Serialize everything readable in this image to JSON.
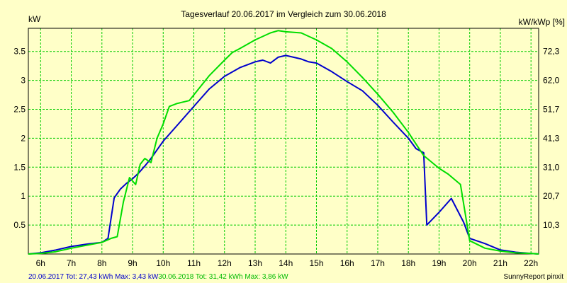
{
  "chart_data": {
    "type": "line",
    "title": "Tagesverlauf 20.06.2017 im Vergleich zum 30.06.2018",
    "ylabel_left": "kW",
    "ylabel_right": "kW/kWp [%]",
    "x_ticks": [
      "6h",
      "7h",
      "8h",
      "9h",
      "10h",
      "11h",
      "12h",
      "13h",
      "14h",
      "15h",
      "16h",
      "17h",
      "18h",
      "19h",
      "20h",
      "21h",
      "22h"
    ],
    "xlim": [
      5.6,
      22.25
    ],
    "ylim": [
      0,
      3.9
    ],
    "y_ticks": [
      0.5,
      1,
      1.5,
      2,
      2.5,
      3,
      3.5
    ],
    "y_tick_labels": [
      "0.5",
      "1",
      "1.5",
      "2",
      "2.5",
      "3",
      "3.5"
    ],
    "y2_ticks": [
      0.5,
      1,
      1.5,
      2,
      2.5,
      3,
      3.5
    ],
    "y2_tick_labels": [
      "10,3",
      "20,7",
      "31,0",
      "41,3",
      "51,7",
      "62,0",
      "72,3"
    ],
    "grid": true,
    "series": [
      {
        "name": "20.06.2017",
        "color": "#0000cc",
        "x": [
          5.6,
          6.0,
          6.5,
          7.0,
          7.5,
          8.0,
          8.2,
          8.4,
          8.6,
          8.8,
          9.0,
          9.2,
          9.4,
          9.6,
          9.8,
          10.0,
          10.5,
          11.0,
          11.5,
          12.0,
          12.5,
          13.0,
          13.25,
          13.5,
          13.75,
          14.0,
          14.25,
          14.5,
          14.75,
          15.0,
          15.5,
          16.0,
          16.5,
          17.0,
          17.5,
          18.0,
          18.25,
          18.5,
          18.6,
          19.0,
          19.4,
          19.8,
          20.0,
          20.5,
          21.0,
          21.5,
          22.0,
          22.25
        ],
        "y": [
          0.0,
          0.02,
          0.07,
          0.13,
          0.17,
          0.2,
          0.27,
          0.97,
          1.12,
          1.22,
          1.3,
          1.4,
          1.52,
          1.65,
          1.8,
          1.95,
          2.25,
          2.55,
          2.85,
          3.07,
          3.22,
          3.32,
          3.35,
          3.3,
          3.4,
          3.43,
          3.4,
          3.37,
          3.32,
          3.3,
          3.15,
          2.98,
          2.82,
          2.57,
          2.28,
          2.0,
          1.82,
          1.75,
          0.5,
          0.72,
          0.96,
          0.55,
          0.27,
          0.18,
          0.07,
          0.03,
          0.01,
          0.0
        ]
      },
      {
        "name": "30.06.2018",
        "color": "#00dd00",
        "x": [
          5.6,
          6.0,
          6.5,
          7.0,
          7.5,
          8.0,
          8.3,
          8.5,
          8.7,
          8.9,
          9.1,
          9.25,
          9.4,
          9.6,
          9.8,
          10.0,
          10.2,
          10.45,
          10.85,
          11.0,
          11.5,
          12.0,
          12.25,
          12.5,
          13.0,
          13.5,
          13.75,
          14.0,
          14.5,
          15.0,
          15.5,
          16.0,
          16.5,
          17.0,
          17.5,
          18.0,
          18.5,
          19.0,
          19.3,
          19.7,
          20.0,
          20.5,
          21.0,
          21.5,
          22.0,
          22.25
        ],
        "y": [
          0.0,
          0.01,
          0.04,
          0.1,
          0.15,
          0.2,
          0.27,
          0.3,
          0.9,
          1.32,
          1.2,
          1.55,
          1.65,
          1.58,
          2.0,
          2.25,
          2.55,
          2.6,
          2.65,
          2.75,
          3.08,
          3.35,
          3.48,
          3.55,
          3.7,
          3.82,
          3.86,
          3.84,
          3.82,
          3.7,
          3.55,
          3.32,
          3.05,
          2.76,
          2.45,
          2.1,
          1.7,
          1.48,
          1.38,
          1.2,
          0.23,
          0.1,
          0.05,
          0.02,
          0.01,
          0.0
        ]
      }
    ],
    "footer_left": [
      {
        "text": "20.06.2017 Tot: 27,43 kWh Max: 3,43 kW",
        "color": "#0000cc"
      },
      {
        "text": "30.06.2018 Tot: 31,42 kWh Max: 3,86 kW",
        "color": "#00bb00"
      }
    ],
    "footer_right": "SunnyReport pinxit"
  }
}
